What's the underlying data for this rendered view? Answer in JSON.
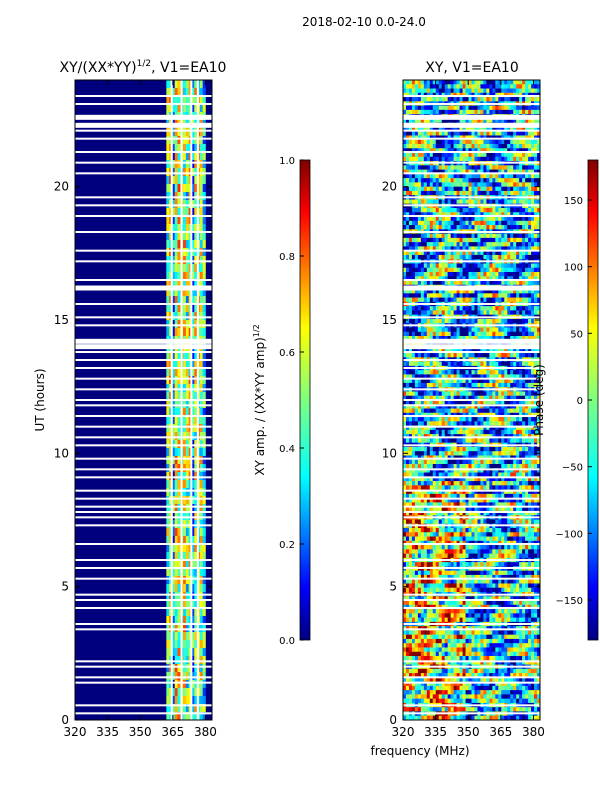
{
  "suptitle": "2018-02-10 0.0-24.0",
  "shared": {
    "xlabel": "frequency (MHz)",
    "ylabel": "UT (hours)"
  },
  "colors": {
    "jet": [
      "#00007f",
      "#0000ff",
      "#007fff",
      "#00ffff",
      "#7fff7f",
      "#ffff00",
      "#ff7f00",
      "#ff0000",
      "#7f0000"
    ],
    "amp_background": "#00007f",
    "gap": "#ffffff"
  },
  "chart_data": [
    {
      "type": "heatmap",
      "title_prefix": "XY/(XX*YY)",
      "title_exp": "1/2",
      "title_suffix": ", V1=EA10",
      "xlabel": "",
      "ylabel": "UT (hours)",
      "xlim": [
        320,
        383
      ],
      "ylim": [
        0,
        24
      ],
      "xticks": [
        320,
        335,
        350,
        365,
        380
      ],
      "yticks": [
        0,
        5,
        10,
        15,
        20
      ],
      "colorbar": {
        "label_prefix": "XY amp. / (XX*YY amp)",
        "label_exp": "1/2",
        "range": [
          0.0,
          1.0
        ],
        "ticks": [
          "0.0",
          "0.2",
          "0.4",
          "0.6",
          "0.8",
          "1.0"
        ]
      },
      "data_region_mhz": [
        362,
        380
      ],
      "typical_value_range": [
        0.0,
        0.8
      ]
    },
    {
      "type": "heatmap",
      "title": "XY, V1=EA10",
      "xlabel": "frequency (MHz)",
      "ylabel": "",
      "xlim": [
        320,
        383
      ],
      "ylim": [
        0,
        24
      ],
      "xticks": [
        320,
        335,
        350,
        365,
        380
      ],
      "yticks": [
        0,
        5,
        10,
        15,
        20
      ],
      "colorbar": {
        "label": "Phase (deg)",
        "range": [
          -180,
          180
        ],
        "ticks": [
          "150",
          "100",
          "50",
          "0",
          "−50",
          "−100",
          "−150"
        ]
      }
    }
  ]
}
